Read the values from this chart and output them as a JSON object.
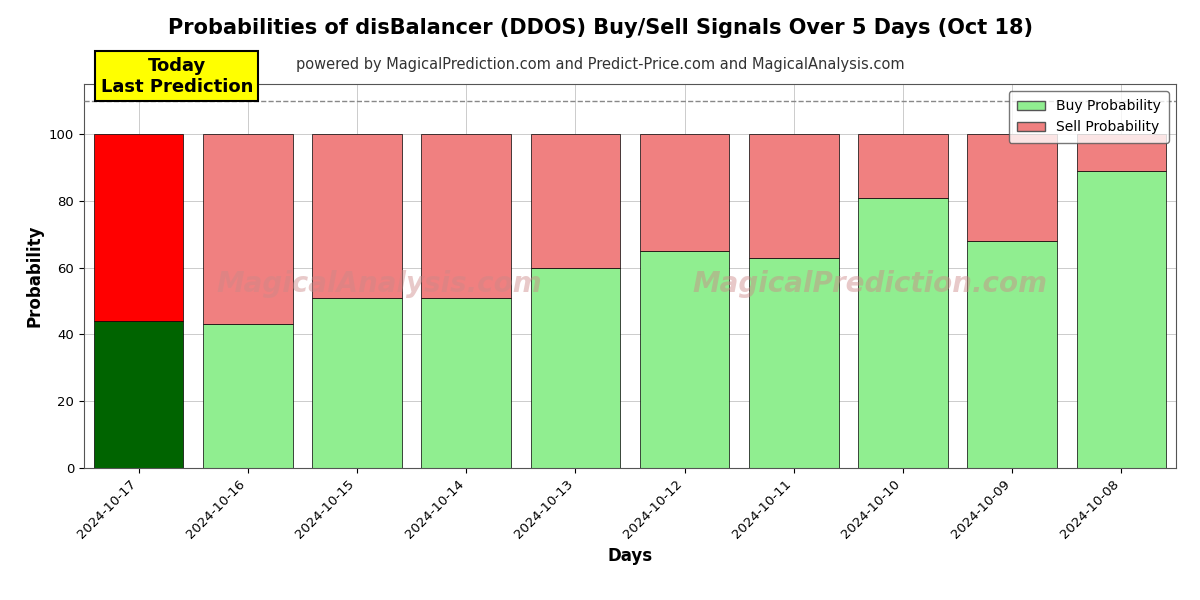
{
  "title": "Probabilities of disBalancer (DDOS) Buy/Sell Signals Over 5 Days (Oct 18)",
  "subtitle": "powered by MagicalPrediction.com and Predict-Price.com and MagicalAnalysis.com",
  "xlabel": "Days",
  "ylabel": "Probability",
  "dates": [
    "2024-10-17",
    "2024-10-16",
    "2024-10-15",
    "2024-10-14",
    "2024-10-13",
    "2024-10-12",
    "2024-10-11",
    "2024-10-10",
    "2024-10-09",
    "2024-10-08"
  ],
  "buy_values": [
    44,
    43,
    51,
    51,
    60,
    65,
    63,
    81,
    68,
    89
  ],
  "sell_values": [
    56,
    57,
    49,
    49,
    40,
    35,
    37,
    19,
    32,
    11
  ],
  "today_bar_buy_color": "#006400",
  "today_bar_sell_color": "#FF0000",
  "other_bar_buy_color": "#90EE90",
  "other_bar_sell_color": "#F08080",
  "legend_buy_color": "#90EE90",
  "legend_sell_color": "#F08080",
  "today_annotation_text": "Today\nLast Prediction",
  "today_annotation_bg": "#FFFF00",
  "today_annotation_border": "#000000",
  "ylim": [
    0,
    115
  ],
  "dashed_line_y": 110,
  "bar_edgecolor": "#000000",
  "bar_linewidth": 0.5,
  "background_color": "#FFFFFF",
  "grid_color": "#AAAAAA",
  "title_fontsize": 15,
  "subtitle_fontsize": 10.5,
  "axis_label_fontsize": 12,
  "tick_fontsize": 9.5,
  "legend_fontsize": 10,
  "annotation_fontsize": 13
}
